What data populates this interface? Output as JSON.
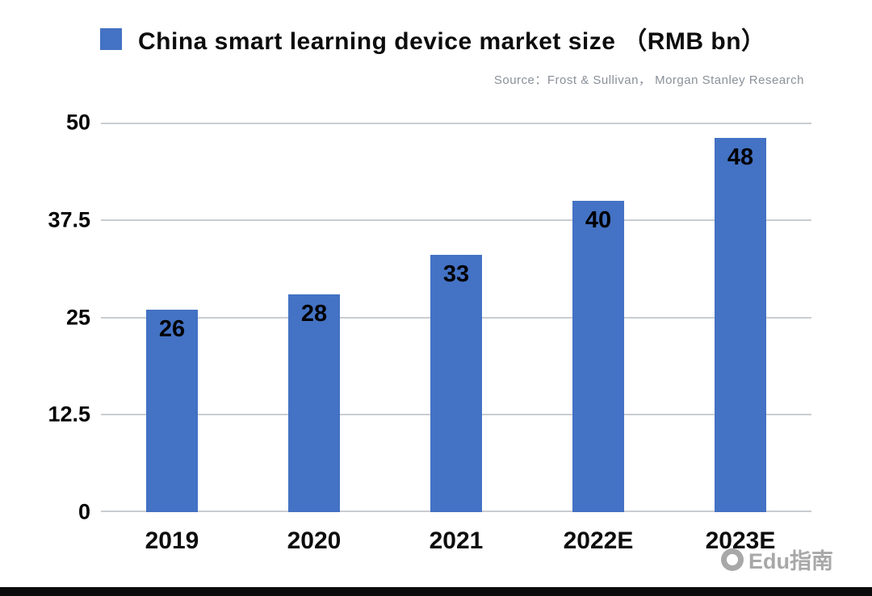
{
  "title": "China smart learning device market size （RMB bn）",
  "source": "Source：Frost & Sullivan， Morgan Stanley Research",
  "watermark": "Edu指南",
  "colors": {
    "bar": "#4472C4",
    "grid": "#c9cdd2",
    "value_label": "#000000",
    "source_text": "#8a9099",
    "watermark_text": "#a8a8a8"
  },
  "chart_data": {
    "type": "bar",
    "title": "China smart learning device market size （RMB bn）",
    "categories": [
      "2019",
      "2020",
      "2021",
      "2022E",
      "2023E"
    ],
    "values": [
      26,
      28,
      33,
      40,
      48
    ],
    "xlabel": "",
    "ylabel": "",
    "ylim": [
      0,
      50
    ],
    "yticks": [
      0,
      12.5,
      25,
      37.5,
      50
    ],
    "grid": true,
    "legend_position": "top-left",
    "source": "Source：Frost & Sullivan， Morgan Stanley Research"
  }
}
